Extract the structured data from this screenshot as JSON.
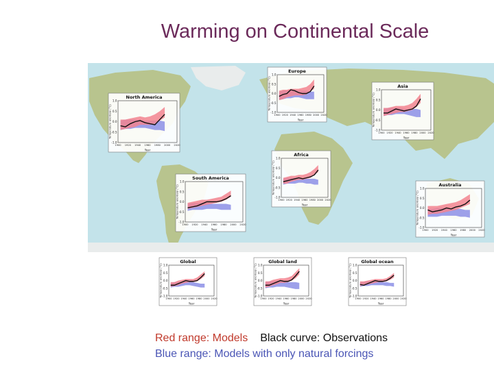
{
  "page": {
    "title": "Warming on Continental Scale"
  },
  "caption": {
    "red": "Red range: Models",
    "black": "Black curve: Observations",
    "blue": "Blue range: Models with only natural forcings"
  },
  "colors": {
    "ocean": "#c3e3ea",
    "land": "#b8c48e",
    "model_range": "#f2848f",
    "natural_range": "#8c8fe6",
    "observations": "#111111",
    "title": "#6b2a5a"
  },
  "chart_data": [
    {
      "type": "line",
      "title": "Europe",
      "ylabel": "Temperature anomaly (°C)",
      "xlabel": "Year",
      "x": [
        1905,
        1915,
        1925,
        1935,
        1945,
        1955,
        1965,
        1975,
        1985,
        1995
      ],
      "ylim": [
        -1.0,
        1.0
      ],
      "xlim": [
        1900,
        2020
      ],
      "yticks": [
        "1.0",
        "0.5",
        "0.0",
        "-0.5",
        "-1.0"
      ],
      "xticks": [
        "1900",
        "1920",
        "1940",
        "1960",
        "1980",
        "2000",
        "2020"
      ],
      "series": [
        {
          "role": "observations",
          "values": [
            -0.15,
            -0.05,
            0.0,
            0.2,
            0.15,
            0.05,
            0.0,
            0.0,
            0.1,
            0.4
          ]
        },
        {
          "role": "model_range",
          "low": [
            -0.35,
            -0.3,
            -0.2,
            -0.15,
            -0.1,
            -0.1,
            -0.1,
            -0.05,
            0.1,
            0.25
          ],
          "high": [
            0.15,
            0.2,
            0.2,
            0.25,
            0.25,
            0.25,
            0.3,
            0.35,
            0.5,
            0.75
          ]
        },
        {
          "role": "natural_range",
          "low": [
            -0.35,
            -0.3,
            -0.25,
            -0.25,
            -0.2,
            -0.2,
            -0.25,
            -0.3,
            -0.3,
            -0.3
          ],
          "high": [
            0.1,
            0.15,
            0.15,
            0.2,
            0.2,
            0.15,
            0.15,
            0.15,
            0.1,
            0.1
          ]
        }
      ]
    },
    {
      "type": "line",
      "title": "Asia",
      "ylabel": "Temperature anomaly (°C)",
      "xlabel": "Year",
      "x": [
        1905,
        1915,
        1925,
        1935,
        1945,
        1955,
        1965,
        1975,
        1985,
        1995
      ],
      "ylim": [
        -1.0,
        1.0
      ],
      "xlim": [
        1900,
        2020
      ],
      "yticks": [
        "1.0",
        "0.5",
        "0.0",
        "-0.5",
        "-1.0"
      ],
      "xticks": [
        "1900",
        "1920",
        "1940",
        "1960",
        "1980",
        "2000",
        "2020"
      ],
      "series": [
        {
          "role": "observations",
          "values": [
            -0.15,
            -0.15,
            -0.05,
            0.05,
            0.0,
            -0.05,
            0.0,
            0.05,
            0.2,
            0.55
          ]
        },
        {
          "role": "model_range",
          "low": [
            -0.3,
            -0.25,
            -0.2,
            -0.15,
            -0.1,
            -0.1,
            -0.05,
            0.0,
            0.15,
            0.35
          ],
          "high": [
            0.1,
            0.1,
            0.15,
            0.2,
            0.2,
            0.2,
            0.25,
            0.35,
            0.55,
            0.8
          ]
        },
        {
          "role": "natural_range",
          "low": [
            -0.3,
            -0.25,
            -0.25,
            -0.2,
            -0.2,
            -0.2,
            -0.25,
            -0.3,
            -0.35,
            -0.35
          ],
          "high": [
            0.05,
            0.1,
            0.1,
            0.1,
            0.1,
            0.05,
            0.05,
            0.05,
            0.05,
            0.0
          ]
        }
      ]
    },
    {
      "type": "line",
      "title": "North America",
      "ylabel": "Temperature anomaly (°C)",
      "xlabel": "Year",
      "x": [
        1905,
        1915,
        1925,
        1935,
        1945,
        1955,
        1965,
        1975,
        1985,
        1995
      ],
      "ylim": [
        -1.0,
        1.0
      ],
      "xlim": [
        1900,
        2020
      ],
      "yticks": [
        "1.0",
        "0.5",
        "0.0",
        "-0.5",
        "-1.0"
      ],
      "xticks": [
        "1900",
        "1920",
        "1940",
        "1960",
        "1980",
        "2000",
        "2020"
      ],
      "series": [
        {
          "role": "observations",
          "values": [
            -0.2,
            -0.25,
            -0.1,
            0.0,
            0.05,
            -0.05,
            -0.1,
            -0.15,
            0.1,
            0.35
          ]
        },
        {
          "role": "model_range",
          "low": [
            -0.4,
            -0.35,
            -0.3,
            -0.25,
            -0.15,
            -0.15,
            -0.15,
            -0.1,
            0.05,
            0.2
          ],
          "high": [
            0.1,
            0.1,
            0.15,
            0.2,
            0.25,
            0.2,
            0.25,
            0.35,
            0.5,
            0.7
          ]
        },
        {
          "role": "natural_range",
          "low": [
            -0.4,
            -0.35,
            -0.35,
            -0.3,
            -0.3,
            -0.3,
            -0.35,
            -0.4,
            -0.4,
            -0.45
          ],
          "high": [
            0.05,
            0.1,
            0.1,
            0.1,
            0.1,
            0.05,
            0.05,
            0.05,
            0.05,
            0.0
          ]
        }
      ]
    },
    {
      "type": "line",
      "title": "Africa",
      "ylabel": "Temperature anomaly (°C)",
      "xlabel": "Year",
      "x": [
        1905,
        1915,
        1925,
        1935,
        1945,
        1955,
        1965,
        1975,
        1985,
        1995
      ],
      "ylim": [
        -1.0,
        1.0
      ],
      "xlim": [
        1900,
        2020
      ],
      "yticks": [
        "1.0",
        "0.5",
        "0.0",
        "-0.5",
        "-1.0"
      ],
      "xticks": [
        "1900",
        "1920",
        "1940",
        "1960",
        "1980",
        "2000",
        "2020"
      ],
      "series": [
        {
          "role": "observations",
          "values": [
            -0.2,
            -0.15,
            -0.1,
            -0.05,
            0.0,
            -0.05,
            0.0,
            0.05,
            0.15,
            0.4
          ]
        },
        {
          "role": "model_range",
          "low": [
            -0.3,
            -0.3,
            -0.2,
            -0.15,
            -0.1,
            -0.1,
            -0.05,
            0.0,
            0.15,
            0.3
          ],
          "high": [
            0.0,
            0.05,
            0.1,
            0.1,
            0.15,
            0.15,
            0.2,
            0.3,
            0.45,
            0.65
          ]
        },
        {
          "role": "natural_range",
          "low": [
            -0.35,
            -0.3,
            -0.3,
            -0.3,
            -0.25,
            -0.25,
            -0.3,
            -0.3,
            -0.35,
            -0.35
          ],
          "high": [
            -0.05,
            0.0,
            0.0,
            0.0,
            0.0,
            -0.05,
            -0.05,
            -0.05,
            -0.05,
            -0.1
          ]
        }
      ]
    },
    {
      "type": "line",
      "title": "South America",
      "ylabel": "Temperature anomaly (°C)",
      "xlabel": "Year",
      "x": [
        1905,
        1915,
        1925,
        1935,
        1945,
        1955,
        1965,
        1975,
        1985,
        1995
      ],
      "ylim": [
        -1.0,
        1.0
      ],
      "xlim": [
        1900,
        2020
      ],
      "yticks": [
        "1.0",
        "0.5",
        "0.0",
        "-0.5",
        "-1.0"
      ],
      "xticks": [
        "1900",
        "1920",
        "1940",
        "1960",
        "1980",
        "2000",
        "2020"
      ],
      "series": [
        {
          "role": "observations",
          "values": [
            -0.3,
            -0.25,
            -0.2,
            -0.1,
            0.0,
            0.0,
            0.0,
            0.05,
            0.15,
            0.3
          ]
        },
        {
          "role": "model_range",
          "low": [
            -0.35,
            -0.3,
            -0.25,
            -0.2,
            -0.15,
            -0.1,
            -0.05,
            0.0,
            0.1,
            0.25
          ],
          "high": [
            -0.05,
            0.0,
            0.05,
            0.1,
            0.1,
            0.15,
            0.2,
            0.25,
            0.4,
            0.55
          ]
        },
        {
          "role": "natural_range",
          "low": [
            -0.45,
            -0.4,
            -0.4,
            -0.4,
            -0.35,
            -0.35,
            -0.35,
            -0.4,
            -0.4,
            -0.4
          ],
          "high": [
            -0.1,
            -0.05,
            -0.05,
            -0.05,
            -0.05,
            -0.1,
            -0.1,
            -0.1,
            -0.1,
            -0.15
          ]
        }
      ]
    },
    {
      "type": "line",
      "title": "Australia",
      "ylabel": "Temperature anomaly (°C)",
      "xlabel": "Year",
      "x": [
        1905,
        1915,
        1925,
        1935,
        1945,
        1955,
        1965,
        1975,
        1985,
        1995
      ],
      "ylim": [
        -1.0,
        1.0
      ],
      "xlim": [
        1900,
        2020
      ],
      "yticks": [
        "1.0",
        "0.5",
        "0.0",
        "-0.5",
        "-1.0"
      ],
      "xticks": [
        "1900",
        "1920",
        "1940",
        "1960",
        "1980",
        "2000",
        "2020"
      ],
      "series": [
        {
          "role": "observations",
          "values": [
            -0.1,
            -0.2,
            -0.15,
            -0.1,
            0.0,
            -0.05,
            0.05,
            0.1,
            0.2,
            0.4
          ]
        },
        {
          "role": "model_range",
          "low": [
            -0.35,
            -0.3,
            -0.3,
            -0.25,
            -0.2,
            -0.15,
            -0.1,
            0.0,
            0.1,
            0.2
          ],
          "high": [
            0.1,
            0.1,
            0.1,
            0.15,
            0.2,
            0.25,
            0.3,
            0.4,
            0.55,
            0.7
          ]
        },
        {
          "role": "natural_range",
          "low": [
            -0.45,
            -0.45,
            -0.45,
            -0.4,
            -0.4,
            -0.4,
            -0.4,
            -0.45,
            -0.45,
            -0.5
          ],
          "high": [
            -0.05,
            -0.05,
            0.0,
            0.0,
            0.0,
            -0.05,
            -0.05,
            -0.05,
            -0.1,
            -0.1
          ]
        }
      ]
    },
    {
      "type": "line",
      "title": "Global",
      "ylabel": "Temperature anomaly (°C)",
      "xlabel": "Year",
      "x": [
        1905,
        1915,
        1925,
        1935,
        1945,
        1955,
        1965,
        1975,
        1985,
        1995
      ],
      "ylim": [
        -1.0,
        1.0
      ],
      "xlim": [
        1900,
        2020
      ],
      "yticks": [
        "1.0",
        "0.5",
        "0.0",
        "-0.5",
        "-1.0"
      ],
      "xticks": [
        "1900",
        "1920",
        "1940",
        "1960",
        "1980",
        "2000",
        "2020"
      ],
      "series": [
        {
          "role": "observations",
          "values": [
            -0.3,
            -0.3,
            -0.2,
            -0.1,
            0.0,
            -0.05,
            -0.05,
            0.0,
            0.2,
            0.45
          ]
        },
        {
          "role": "model_range",
          "low": [
            -0.4,
            -0.35,
            -0.3,
            -0.2,
            -0.15,
            -0.1,
            -0.1,
            -0.05,
            0.1,
            0.3
          ],
          "high": [
            -0.1,
            -0.1,
            0.0,
            0.05,
            0.1,
            0.1,
            0.1,
            0.2,
            0.4,
            0.6
          ]
        },
        {
          "role": "natural_range",
          "low": [
            -0.45,
            -0.4,
            -0.4,
            -0.35,
            -0.3,
            -0.3,
            -0.35,
            -0.4,
            -0.45,
            -0.45
          ],
          "high": [
            -0.15,
            -0.1,
            -0.1,
            -0.05,
            -0.05,
            -0.05,
            -0.1,
            -0.15,
            -0.2,
            -0.2
          ]
        }
      ]
    },
    {
      "type": "line",
      "title": "Global land",
      "ylabel": "Temperature anomaly (°C)",
      "xlabel": "Year",
      "x": [
        1905,
        1915,
        1925,
        1935,
        1945,
        1955,
        1965,
        1975,
        1985,
        1995
      ],
      "ylim": [
        -1.0,
        1.0
      ],
      "xlim": [
        1900,
        2020
      ],
      "yticks": [
        "1.0",
        "0.5",
        "0.0",
        "-0.5",
        "-1.0"
      ],
      "xticks": [
        "1900",
        "1920",
        "1940",
        "1960",
        "1980",
        "2000",
        "2020"
      ],
      "series": [
        {
          "role": "observations",
          "values": [
            -0.3,
            -0.3,
            -0.2,
            -0.1,
            0.0,
            -0.05,
            -0.05,
            0.05,
            0.3,
            0.6
          ]
        },
        {
          "role": "model_range",
          "low": [
            -0.45,
            -0.4,
            -0.3,
            -0.25,
            -0.15,
            -0.15,
            -0.1,
            0.0,
            0.15,
            0.4
          ],
          "high": [
            -0.05,
            -0.05,
            0.05,
            0.1,
            0.15,
            0.15,
            0.2,
            0.3,
            0.55,
            0.8
          ]
        },
        {
          "role": "natural_range",
          "low": [
            -0.5,
            -0.45,
            -0.45,
            -0.4,
            -0.4,
            -0.4,
            -0.45,
            -0.5,
            -0.55,
            -0.55
          ],
          "high": [
            -0.1,
            -0.05,
            -0.05,
            0.0,
            0.0,
            -0.05,
            -0.1,
            -0.1,
            -0.1,
            -0.15
          ]
        }
      ]
    },
    {
      "type": "line",
      "title": "Global ocean",
      "ylabel": "Temperature anomaly (°C)",
      "xlabel": "Year",
      "x": [
        1905,
        1915,
        1925,
        1935,
        1945,
        1955,
        1965,
        1975,
        1985,
        1995
      ],
      "ylim": [
        -1.0,
        1.0
      ],
      "xlim": [
        1900,
        2020
      ],
      "yticks": [
        "1.0",
        "0.5",
        "0.0",
        "-0.5",
        "-1.0"
      ],
      "xticks": [
        "1900",
        "1920",
        "1940",
        "1960",
        "1980",
        "2000",
        "2020"
      ],
      "series": [
        {
          "role": "observations",
          "values": [
            -0.25,
            -0.3,
            -0.2,
            -0.1,
            0.0,
            -0.05,
            -0.05,
            0.0,
            0.15,
            0.35
          ]
        },
        {
          "role": "model_range",
          "low": [
            -0.35,
            -0.3,
            -0.25,
            -0.2,
            -0.15,
            -0.1,
            -0.1,
            -0.05,
            0.05,
            0.2
          ],
          "high": [
            -0.05,
            -0.05,
            0.0,
            0.05,
            0.1,
            0.1,
            0.1,
            0.15,
            0.3,
            0.5
          ]
        },
        {
          "role": "natural_range",
          "low": [
            -0.4,
            -0.35,
            -0.35,
            -0.3,
            -0.3,
            -0.3,
            -0.3,
            -0.35,
            -0.35,
            -0.4
          ],
          "high": [
            -0.1,
            -0.1,
            -0.05,
            -0.05,
            -0.05,
            -0.05,
            -0.1,
            -0.1,
            -0.15,
            -0.15
          ]
        }
      ]
    }
  ]
}
